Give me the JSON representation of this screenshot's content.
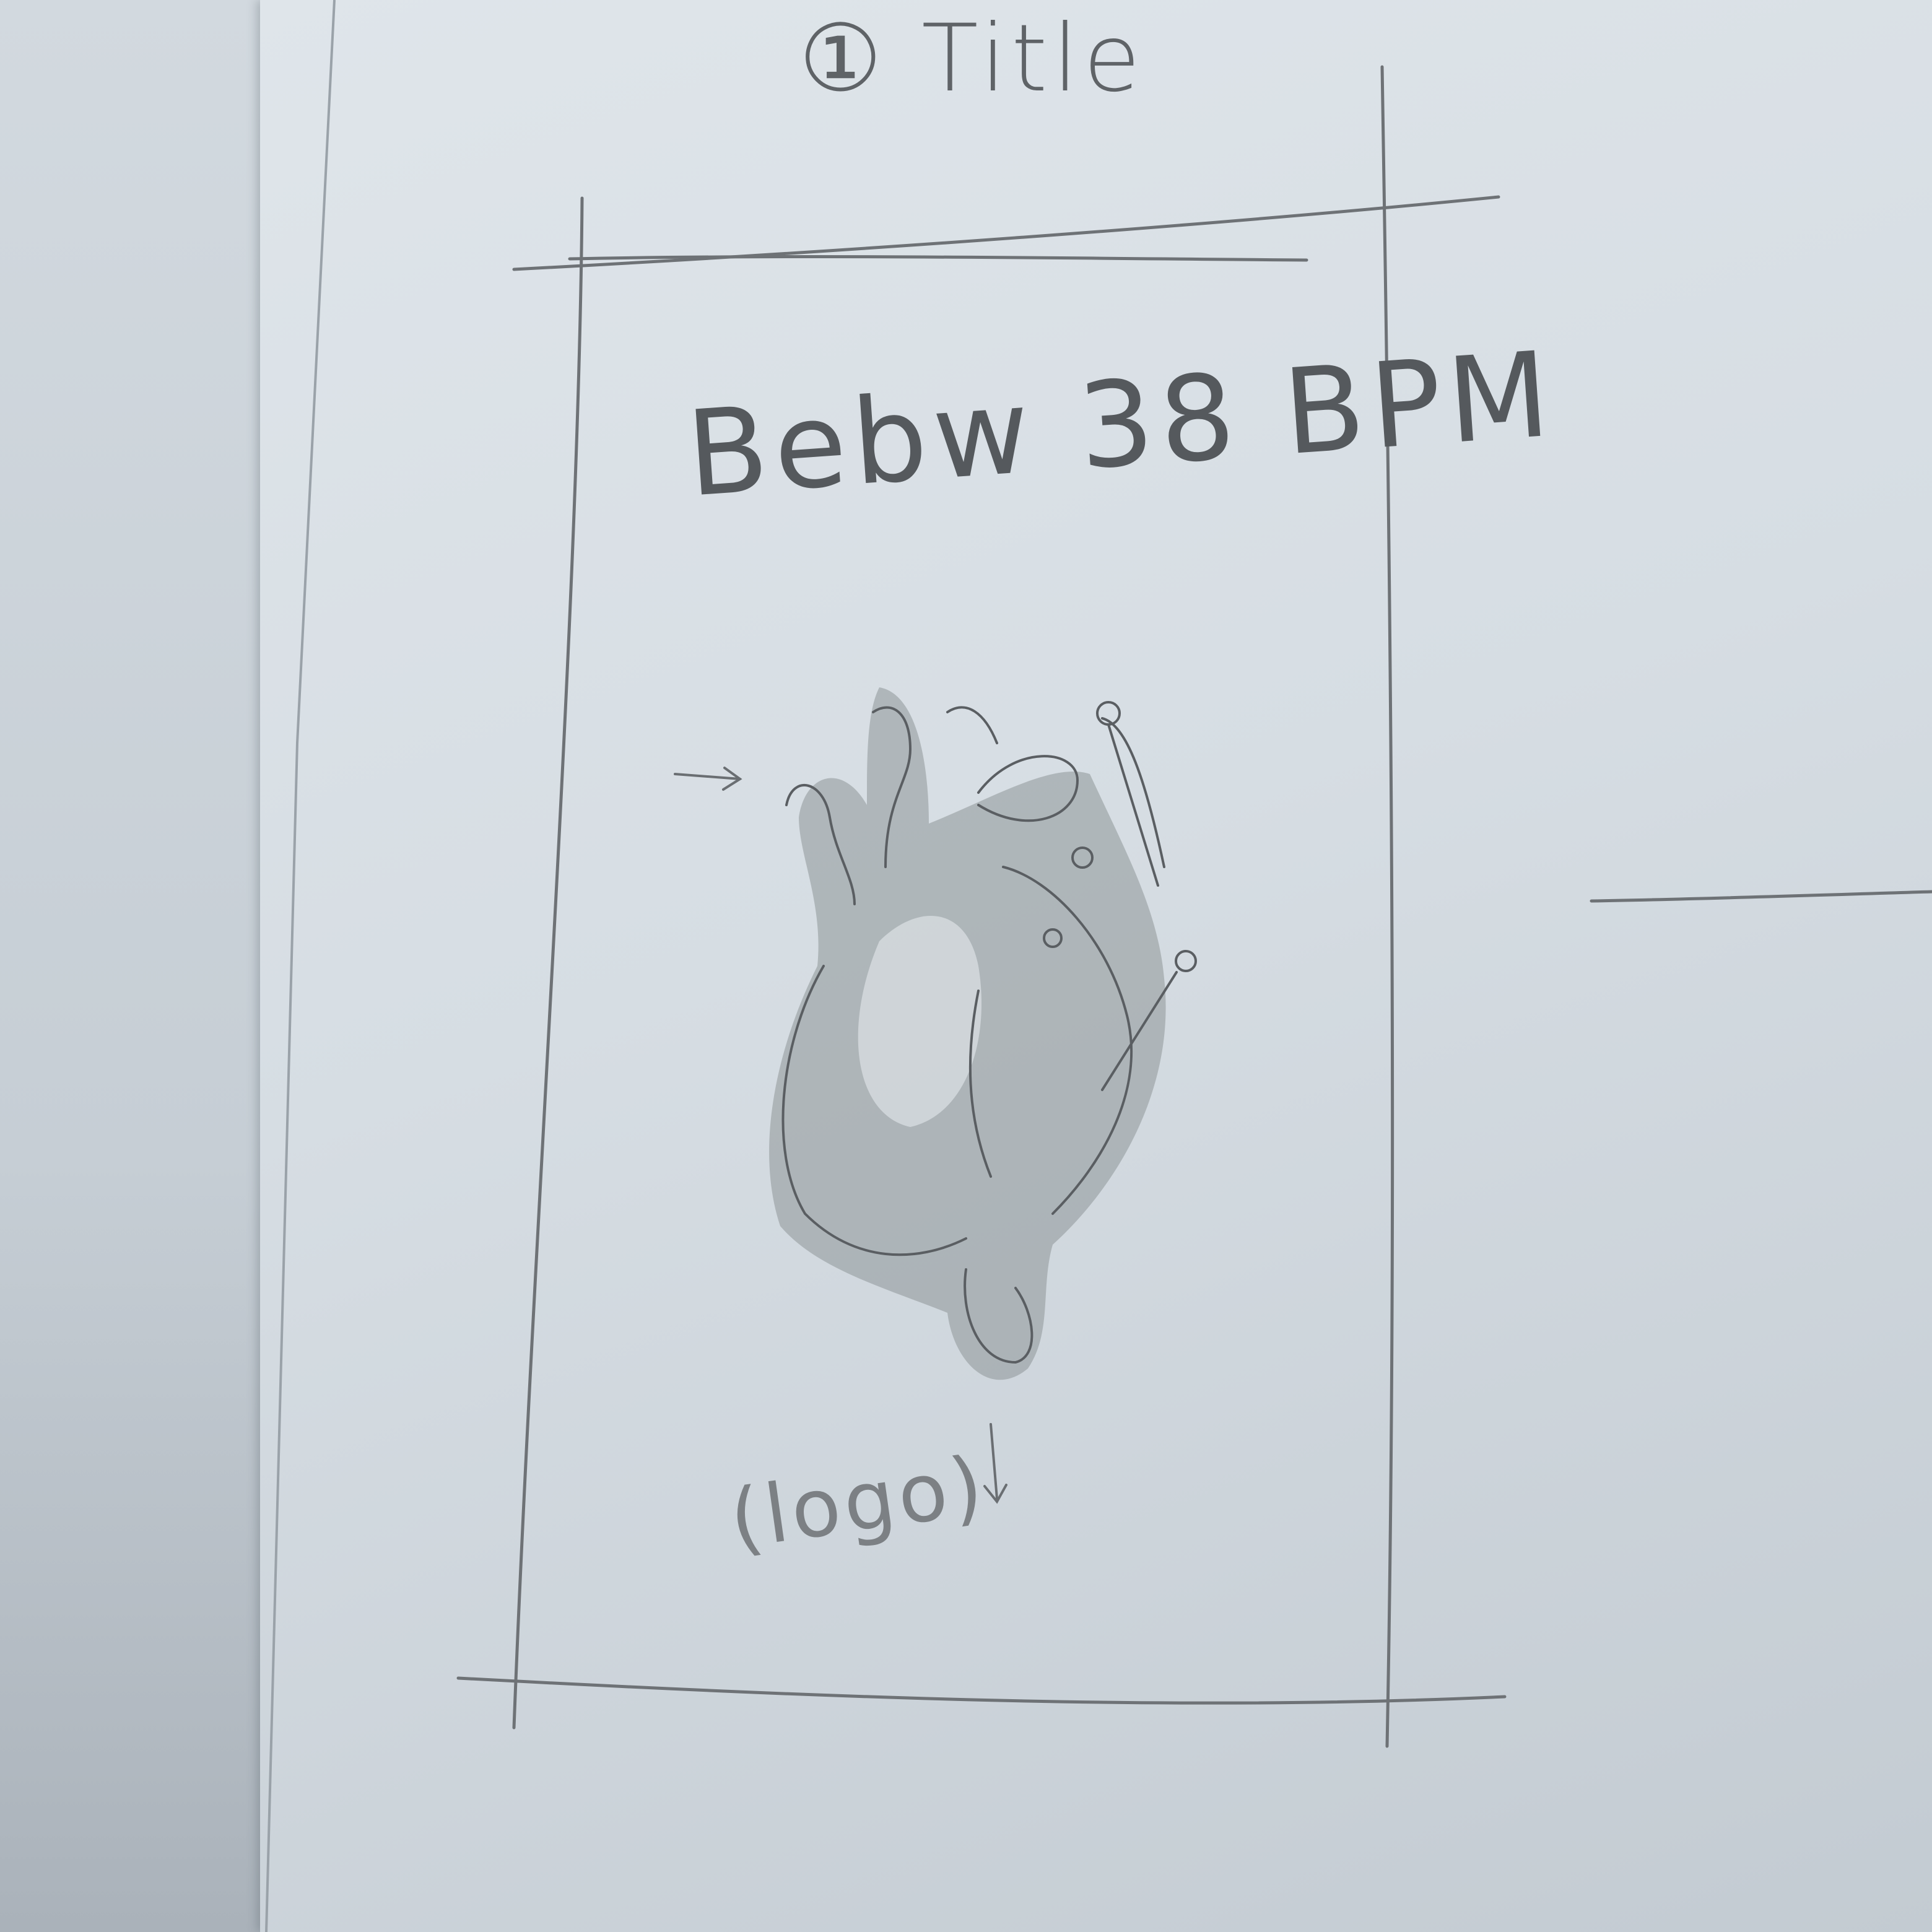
{
  "sketch": {
    "title_label": "① Title",
    "display_text": "Bebw 38 BPM",
    "logo_label": "(logo)",
    "heart_icon": "anatomical-heart-icon",
    "colors": {
      "paper": "#d6dde3",
      "pencil": "#5a5e62",
      "wash": "#8e9698"
    }
  }
}
